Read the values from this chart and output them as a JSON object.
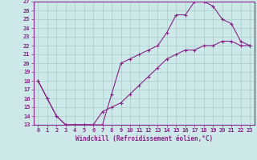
{
  "xlabel": "Windchill (Refroidissement éolien,°C)",
  "bg_color": "#cce8e8",
  "line_color": "#882288",
  "grid_color": "#aacccc",
  "xlim": [
    -0.5,
    23.5
  ],
  "ylim": [
    13,
    27
  ],
  "xticks": [
    0,
    1,
    2,
    3,
    4,
    5,
    6,
    7,
    8,
    9,
    10,
    11,
    12,
    13,
    14,
    15,
    16,
    17,
    18,
    19,
    20,
    21,
    22,
    23
  ],
  "yticks": [
    13,
    14,
    15,
    16,
    17,
    18,
    19,
    20,
    21,
    22,
    23,
    24,
    25,
    26,
    27
  ],
  "curve1_x": [
    0,
    1,
    2,
    3,
    4,
    5,
    6,
    7,
    8,
    9,
    10,
    11,
    12,
    13,
    14,
    15,
    16,
    17,
    18,
    19,
    20,
    21,
    22,
    23
  ],
  "curve1_y": [
    18,
    16,
    14,
    13,
    13,
    13,
    13,
    13,
    16.5,
    20,
    20.5,
    21,
    21.5,
    22,
    23.5,
    25.5,
    25.5,
    27,
    27,
    26.5,
    25,
    24.5,
    22.5,
    22
  ],
  "curve2_x": [
    0,
    1,
    2,
    3,
    4,
    5,
    6,
    7,
    8,
    9,
    10,
    11,
    12,
    13,
    14,
    15,
    16,
    17,
    18,
    19,
    20,
    21,
    22,
    23
  ],
  "curve2_y": [
    18,
    16,
    14,
    13,
    13,
    13,
    13,
    14.5,
    15,
    15.5,
    16.5,
    17.5,
    18.5,
    19.5,
    20.5,
    21,
    21.5,
    21.5,
    22,
    22,
    22.5,
    22.5,
    22,
    22
  ]
}
